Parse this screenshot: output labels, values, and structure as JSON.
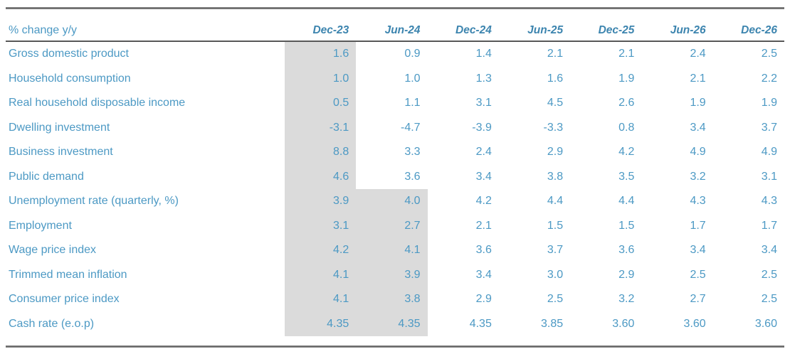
{
  "chart_data": {
    "type": "table",
    "corner_label": "% change y/y",
    "columns": [
      "Dec-23",
      "Jun-24",
      "Dec-24",
      "Jun-25",
      "Dec-25",
      "Jun-26",
      "Dec-26"
    ],
    "rows": [
      {
        "label": "Gross domestic product",
        "values": [
          "1.6",
          "0.9",
          "1.4",
          "2.1",
          "2.1",
          "2.4",
          "2.5"
        ],
        "shaded_cols": 1
      },
      {
        "label": "Household consumption",
        "values": [
          "1.0",
          "1.0",
          "1.3",
          "1.6",
          "1.9",
          "2.1",
          "2.2"
        ],
        "shaded_cols": 1
      },
      {
        "label": "Real household disposable income",
        "values": [
          "0.5",
          "1.1",
          "3.1",
          "4.5",
          "2.6",
          "1.9",
          "1.9"
        ],
        "shaded_cols": 1
      },
      {
        "label": "Dwelling investment",
        "values": [
          "-3.1",
          "-4.7",
          "-3.9",
          "-3.3",
          "0.8",
          "3.4",
          "3.7"
        ],
        "shaded_cols": 1
      },
      {
        "label": "Business investment",
        "values": [
          "8.8",
          "3.3",
          "2.4",
          "2.9",
          "4.2",
          "4.9",
          "4.9"
        ],
        "shaded_cols": 1
      },
      {
        "label": "Public demand",
        "values": [
          "4.6",
          "3.6",
          "3.4",
          "3.8",
          "3.5",
          "3.2",
          "3.1"
        ],
        "shaded_cols": 1
      },
      {
        "label": "Unemployment rate (quarterly, %)",
        "values": [
          "3.9",
          "4.0",
          "4.2",
          "4.4",
          "4.4",
          "4.3",
          "4.3"
        ],
        "shaded_cols": 2
      },
      {
        "label": "Employment",
        "values": [
          "3.1",
          "2.7",
          "2.1",
          "1.5",
          "1.5",
          "1.7",
          "1.7"
        ],
        "shaded_cols": 2
      },
      {
        "label": "Wage price index",
        "values": [
          "4.2",
          "4.1",
          "3.6",
          "3.7",
          "3.6",
          "3.4",
          "3.4"
        ],
        "shaded_cols": 2
      },
      {
        "label": "Trimmed mean inflation",
        "values": [
          "4.1",
          "3.9",
          "3.4",
          "3.0",
          "2.9",
          "2.5",
          "2.5"
        ],
        "shaded_cols": 2
      },
      {
        "label": "Consumer price index",
        "values": [
          "4.1",
          "3.8",
          "2.9",
          "2.5",
          "3.2",
          "2.7",
          "2.5"
        ],
        "shaded_cols": 2
      },
      {
        "label": "Cash rate (e.o.p)",
        "values": [
          "4.35",
          "4.35",
          "4.35",
          "3.85",
          "3.60",
          "3.60",
          "3.60"
        ],
        "shaded_cols": 2
      }
    ],
    "layout_hints": {
      "shading_meaning": "leading shaded cells per row mark the gray-highlighted columns",
      "grid": "off",
      "legend": "none"
    },
    "colors": {
      "text_blue": "#4c99c4",
      "header_blue": "#3d85af",
      "shade_gray": "#dbdbdb",
      "rule_gray": "#6e6e6e"
    }
  }
}
